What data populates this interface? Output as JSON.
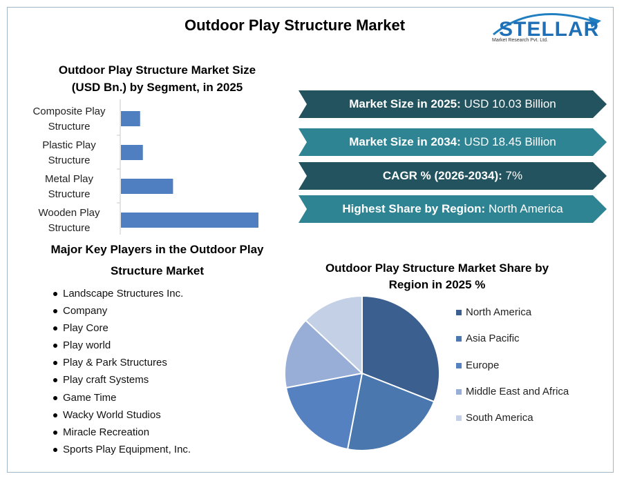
{
  "title": "Outdoor Play Structure Market",
  "logo": {
    "word": "STELLAR",
    "sub": "Market Research Pvt. Ltd."
  },
  "colors": {
    "banner_dark": "#22535e",
    "banner_light": "#2f8493",
    "bar": "#4f7fc0",
    "title_text": "#000000"
  },
  "bar_section": {
    "title_line1": "Outdoor Play Structure Market Size",
    "title_line2": "(USD Bn.) by Segment, in 2025"
  },
  "banners": [
    {
      "label": "Market Size in 2025:",
      "value": " USD 10.03 Billion"
    },
    {
      "label": "Market Size in 2034:",
      "value": " USD 18.45 Billion"
    },
    {
      "label": "CAGR % (2026-2034):",
      "value": " 7%"
    },
    {
      "label": "Highest Share by Region:",
      "value": " North America"
    }
  ],
  "players_section": {
    "title_line1": "Major Key Players in the Outdoor Play",
    "title_line2": "Structure Market",
    "items": [
      "Landscape Structures Inc.",
      "Company",
      "Play Core",
      "Play world",
      "Play & Park Structures",
      "Play craft Systems",
      "Game Time",
      "Wacky World Studios",
      "Miracle Recreation",
      "Sports Play Equipment, Inc."
    ]
  },
  "pie_section": {
    "title_line1": "Outdoor Play Structure Market Share by",
    "title_line2": "Region in 2025 %"
  },
  "chart_data": [
    {
      "type": "bar",
      "orientation": "horizontal",
      "title": "Outdoor Play Structure Market Size (USD Bn.) by Segment, in 2025",
      "categories": [
        "Composite Play Structure",
        "Plastic Play Structure",
        "Metal Play Structure",
        "Wooden Play Structure"
      ],
      "category_lines": [
        [
          "Composite Play",
          "Structure"
        ],
        [
          "Plastic Play",
          "Structure"
        ],
        [
          "Metal Play",
          "Structure"
        ],
        [
          "Wooden Play",
          "Structure"
        ]
      ],
      "values": [
        1.4,
        1.6,
        3.8,
        10.03
      ],
      "xlim": [
        0,
        10.03
      ],
      "grid": false,
      "color": "#4f7fc0"
    },
    {
      "type": "pie",
      "title": "Outdoor Play Structure Market Share by Region in 2025 %",
      "categories": [
        "North America",
        "Asia Pacific",
        "Europe",
        "Middle East and Africa",
        "South America"
      ],
      "values": [
        31,
        22,
        19,
        15,
        13
      ],
      "colors": [
        "#3b5f8e",
        "#4a78ae",
        "#5681c1",
        "#98aed6",
        "#c4d0e6"
      ],
      "legend": "right"
    }
  ]
}
